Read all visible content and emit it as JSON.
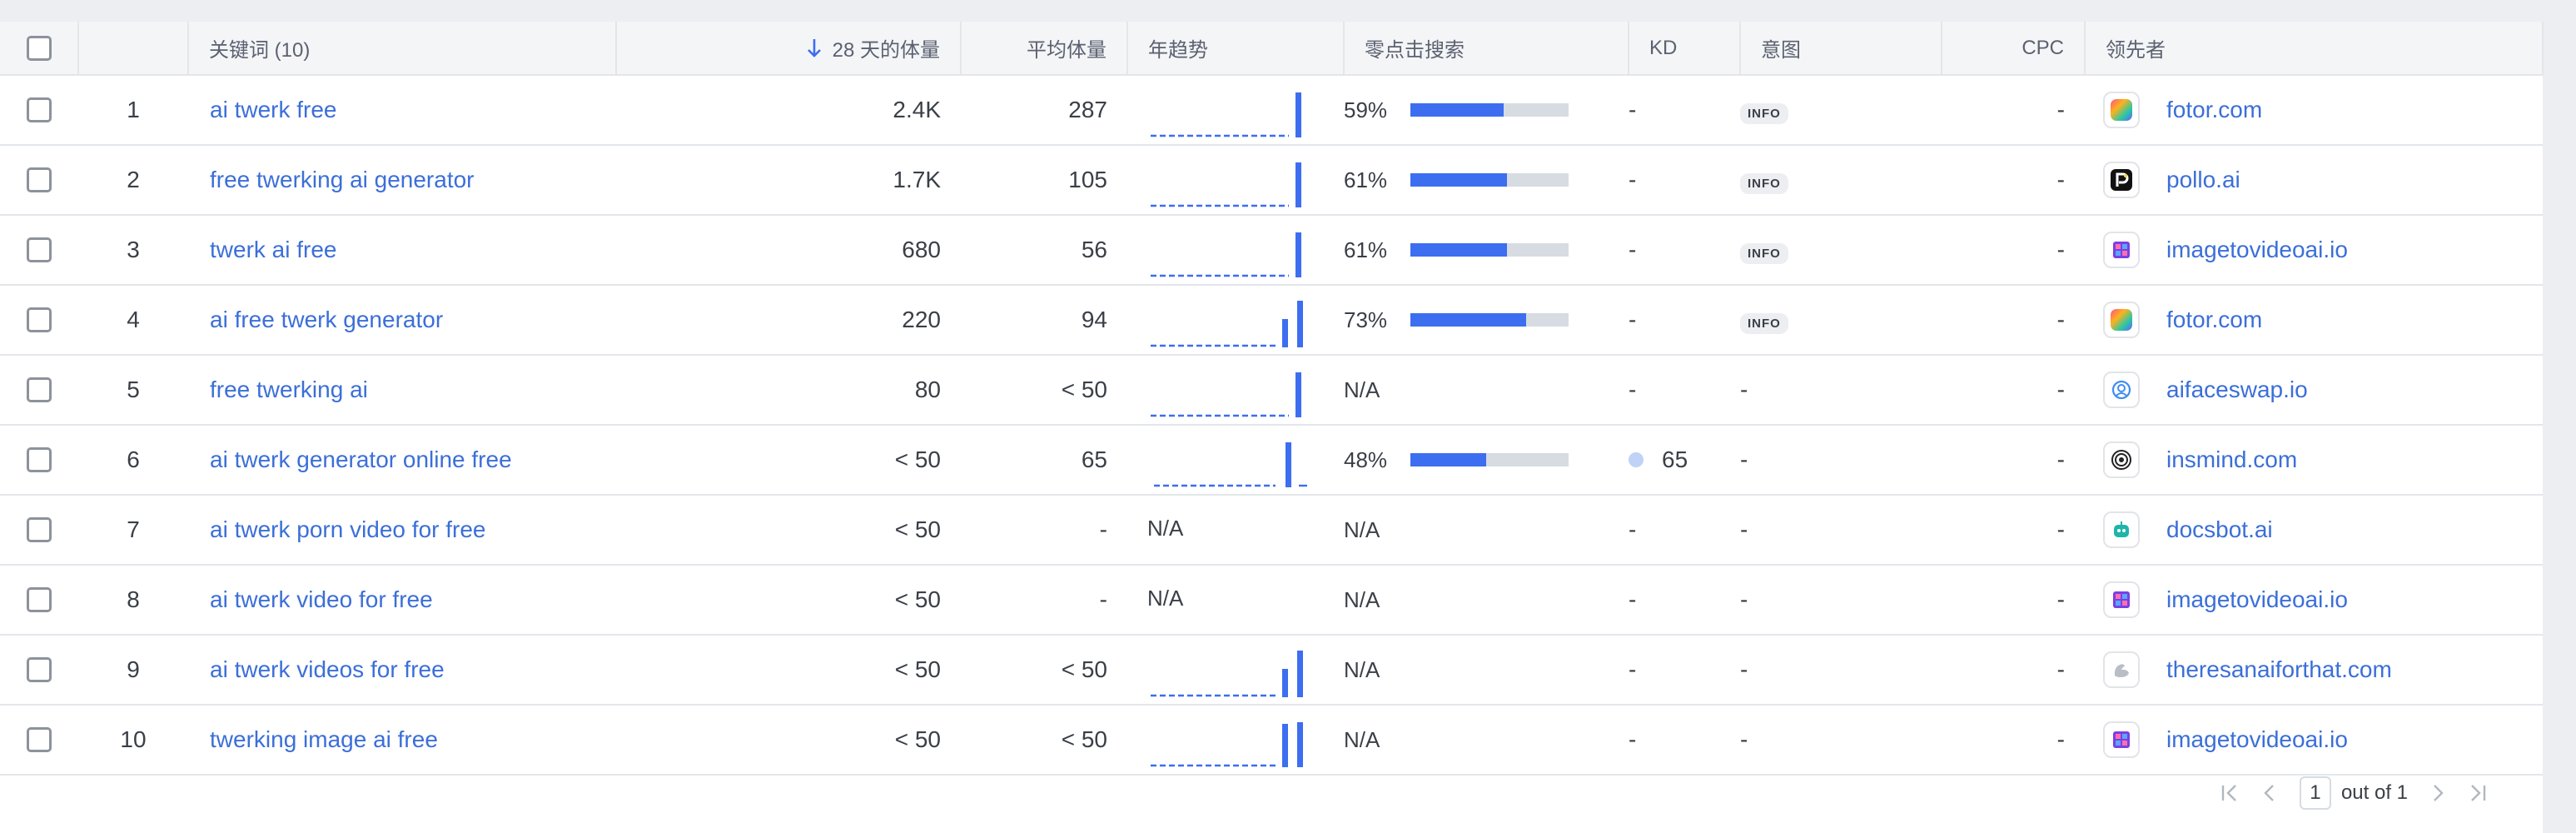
{
  "header": {
    "keyword": "关键词 (10)",
    "volume28": "28 天的体量",
    "avgvol": "平均体量",
    "trend": "年趋势",
    "zeroclick": "零点击搜索",
    "kd": "KD",
    "intent": "意图",
    "cpc": "CPC",
    "leader": "领先者"
  },
  "colors": {
    "accent": "#3d6ef0",
    "link": "#3b6fd8",
    "bar_track": "#d7dbe2"
  },
  "rows": [
    {
      "num": "1",
      "keyword": "ai twerk free",
      "vol": "2.4K",
      "avg": "287",
      "trend": "spike",
      "trend_text": "",
      "zc": "59%",
      "zc_value": 0.59,
      "kd": "-",
      "kd_dot": false,
      "intent": "INFO",
      "cpc": "-",
      "leader": "fotor.com",
      "icon": "fotor-icon"
    },
    {
      "num": "2",
      "keyword": "free twerking ai generator",
      "vol": "1.7K",
      "avg": "105",
      "trend": "spike",
      "trend_text": "",
      "zc": "61%",
      "zc_value": 0.61,
      "kd": "-",
      "kd_dot": false,
      "intent": "INFO",
      "cpc": "-",
      "leader": "pollo.ai",
      "icon": "pollo-icon"
    },
    {
      "num": "3",
      "keyword": "twerk ai free",
      "vol": "680",
      "avg": "56",
      "trend": "spike",
      "trend_text": "",
      "zc": "61%",
      "zc_value": 0.61,
      "kd": "-",
      "kd_dot": false,
      "intent": "INFO",
      "cpc": "-",
      "leader": "imagetovideoai.io",
      "icon": "imagetovideoai-icon"
    },
    {
      "num": "4",
      "keyword": "ai free twerk generator",
      "vol": "220",
      "avg": "94",
      "trend": "double",
      "trend_text": "",
      "zc": "73%",
      "zc_value": 0.73,
      "kd": "-",
      "kd_dot": false,
      "intent": "INFO",
      "cpc": "-",
      "leader": "fotor.com",
      "icon": "fotor-icon"
    },
    {
      "num": "5",
      "keyword": "free twerking ai",
      "vol": "80",
      "avg": "< 50",
      "trend": "spike",
      "trend_text": "",
      "zc": "N/A",
      "zc_value": null,
      "kd": "-",
      "kd_dot": false,
      "intent": "-",
      "cpc": "-",
      "leader": "aifaceswap.io",
      "icon": "aifaceswap-icon"
    },
    {
      "num": "6",
      "keyword": "ai twerk generator online free",
      "vol": "< 50",
      "avg": "65",
      "trend": "late",
      "trend_text": "",
      "zc": "48%",
      "zc_value": 0.48,
      "kd": "65",
      "kd_dot": true,
      "intent": "-",
      "cpc": "-",
      "leader": "insmind.com",
      "icon": "insmind-icon"
    },
    {
      "num": "7",
      "keyword": "ai twerk porn video for free",
      "vol": "< 50",
      "avg": "-",
      "trend": "none",
      "trend_text": "N/A",
      "zc": "N/A",
      "zc_value": null,
      "kd": "-",
      "kd_dot": false,
      "intent": "-",
      "cpc": "-",
      "leader": "docsbot.ai",
      "icon": "docsbot-icon"
    },
    {
      "num": "8",
      "keyword": "ai twerk video for free",
      "vol": "< 50",
      "avg": "-",
      "trend": "none",
      "trend_text": "N/A",
      "zc": "N/A",
      "zc_value": null,
      "kd": "-",
      "kd_dot": false,
      "intent": "-",
      "cpc": "-",
      "leader": "imagetovideoai.io",
      "icon": "imagetovideoai-icon"
    },
    {
      "num": "9",
      "keyword": "ai twerk videos for free",
      "vol": "< 50",
      "avg": "< 50",
      "trend": "double",
      "trend_text": "",
      "zc": "N/A",
      "zc_value": null,
      "kd": "-",
      "kd_dot": false,
      "intent": "-",
      "cpc": "-",
      "leader": "theresanaiforthat.com",
      "icon": "theresanaiforthat-icon"
    },
    {
      "num": "10",
      "keyword": "twerking image ai free",
      "vol": "< 50",
      "avg": "< 50",
      "trend": "double-tall",
      "trend_text": "",
      "zc": "N/A",
      "zc_value": null,
      "kd": "-",
      "kd_dot": false,
      "intent": "-",
      "cpc": "-",
      "leader": "imagetovideoai.io",
      "icon": "imagetovideoai-icon"
    }
  ],
  "pager": {
    "page": "1",
    "out_of": "out of 1"
  }
}
